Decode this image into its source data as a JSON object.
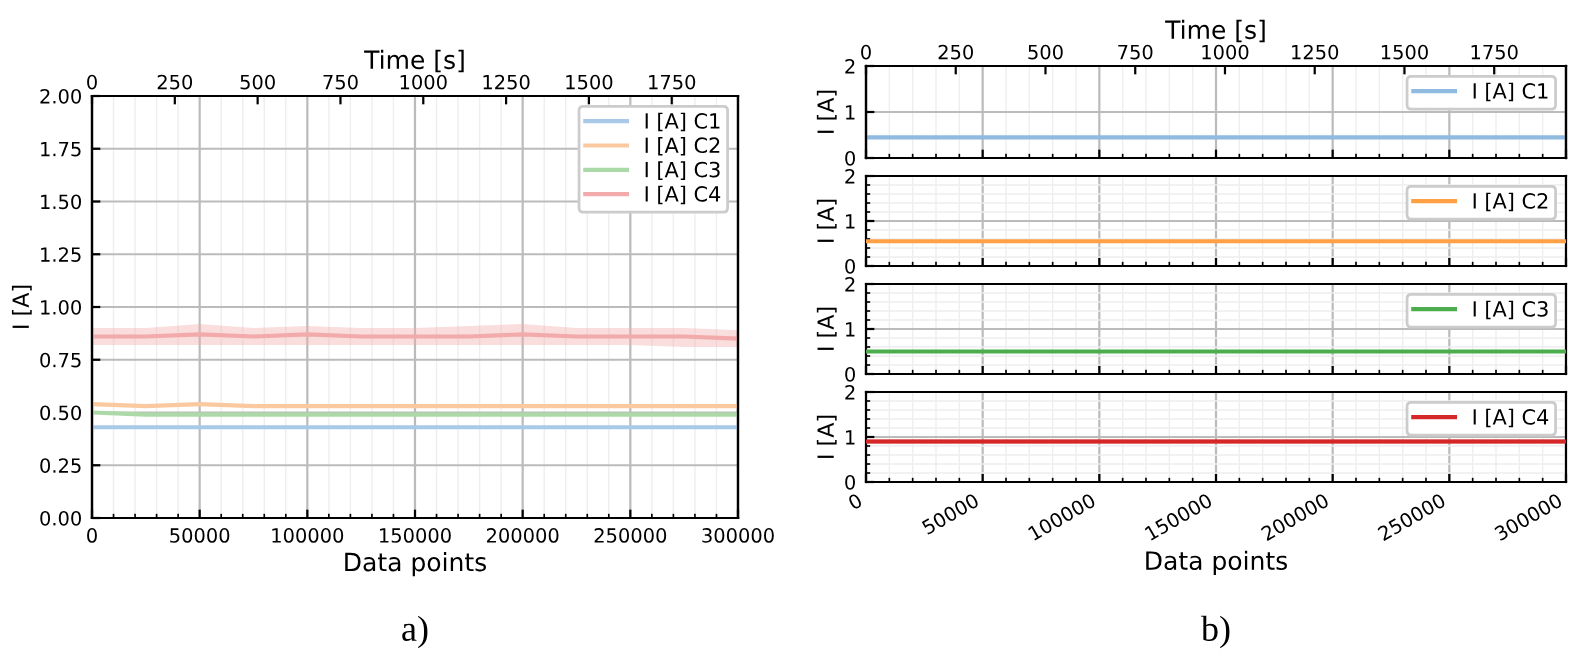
{
  "chart_data": [
    {
      "type": "line",
      "xlabel": "Data points",
      "ylabel": "I [A]",
      "x2label": "Time [s]",
      "xlim": [
        0,
        300000
      ],
      "xticks": [
        0,
        50000,
        100000,
        150000,
        200000,
        250000,
        300000
      ],
      "ylim": [
        0,
        2
      ],
      "yticks": [
        {
          "value": 0,
          "label": "0.00"
        },
        {
          "value": 0.25,
          "label": "0.25"
        },
        {
          "value": 0.5,
          "label": "0.50"
        },
        {
          "value": 0.75,
          "label": "0.75"
        },
        {
          "value": 1,
          "label": "1.00"
        },
        {
          "value": 1.25,
          "label": "1.25"
        },
        {
          "value": 1.5,
          "label": "1.50"
        },
        {
          "value": 1.75,
          "label": "1.75"
        },
        {
          "value": 2,
          "label": "2.00"
        }
      ],
      "x2lim": [
        0,
        1950
      ],
      "x2ticks": [
        0,
        250,
        500,
        750,
        1000,
        1250,
        1500,
        1750
      ],
      "grid": true,
      "legend": "top right",
      "annotations": [
        "a)"
      ],
      "x": [
        0,
        25000,
        50000,
        75000,
        100000,
        125000,
        150000,
        175000,
        200000,
        225000,
        250000,
        275000,
        300000
      ],
      "series": [
        {
          "name": "I [A] C1",
          "color": "#a9c9e8",
          "values": [
            0.43,
            0.43,
            0.43,
            0.43,
            0.43,
            0.43,
            0.43,
            0.43,
            0.43,
            0.43,
            0.43,
            0.43,
            0.43
          ]
        },
        {
          "name": "I [A] C2",
          "color": "#fbc9a0",
          "values": [
            0.54,
            0.53,
            0.54,
            0.53,
            0.53,
            0.53,
            0.53,
            0.53,
            0.53,
            0.53,
            0.53,
            0.53,
            0.53
          ]
        },
        {
          "name": "I [A] C3",
          "color": "#acd9a8",
          "values": [
            0.5,
            0.49,
            0.49,
            0.49,
            0.49,
            0.49,
            0.49,
            0.49,
            0.49,
            0.49,
            0.49,
            0.49,
            0.49
          ]
        },
        {
          "name": "I [A] C4",
          "color": "#f2aaaa",
          "values": [
            0.86,
            0.86,
            0.87,
            0.86,
            0.87,
            0.86,
            0.86,
            0.86,
            0.87,
            0.86,
            0.86,
            0.86,
            0.85
          ],
          "lower": [
            0.82,
            0.82,
            0.82,
            0.82,
            0.82,
            0.82,
            0.82,
            0.82,
            0.82,
            0.82,
            0.82,
            0.81,
            0.81
          ],
          "upper": [
            0.9,
            0.9,
            0.92,
            0.9,
            0.91,
            0.9,
            0.9,
            0.91,
            0.92,
            0.9,
            0.9,
            0.9,
            0.89
          ]
        }
      ]
    },
    {
      "type": "line",
      "ylabel": "I [A]",
      "x2label": "Time [s]",
      "xlim": [
        0,
        300000
      ],
      "xticks": [
        0,
        50000,
        100000,
        150000,
        200000,
        250000,
        300000
      ],
      "ylim": [
        0,
        2
      ],
      "yticks": [
        0,
        1,
        2
      ],
      "x2lim": [
        0,
        1950
      ],
      "x2ticks": [
        0,
        250,
        500,
        750,
        1000,
        1250,
        1500,
        1750
      ],
      "tick_labels": "y",
      "grid": true,
      "legend": "top right",
      "x": [
        0,
        50000,
        100000,
        150000,
        200000,
        250000,
        300000
      ],
      "series": [
        {
          "name": "I [A] C1",
          "color": "#8fbbe0",
          "values": [
            0.45,
            0.45,
            0.45,
            0.45,
            0.45,
            0.45,
            0.45
          ]
        }
      ]
    },
    {
      "type": "line",
      "ylabel": "I [A]",
      "xlim": [
        0,
        300000
      ],
      "xticks": [
        0,
        50000,
        100000,
        150000,
        200000,
        250000,
        300000
      ],
      "ylim": [
        0,
        2
      ],
      "yticks": [
        0,
        1,
        2
      ],
      "tick_labels": "y",
      "grid": true,
      "legend": "top right",
      "x": [
        0,
        50000,
        100000,
        150000,
        200000,
        250000,
        300000
      ],
      "series": [
        {
          "name": "I [A] C2",
          "color": "#ffa045",
          "values": [
            0.55,
            0.55,
            0.55,
            0.55,
            0.55,
            0.55,
            0.55
          ]
        }
      ]
    },
    {
      "type": "line",
      "ylabel": "I [A]",
      "xlim": [
        0,
        300000
      ],
      "xticks": [
        0,
        50000,
        100000,
        150000,
        200000,
        250000,
        300000
      ],
      "ylim": [
        0,
        2
      ],
      "yticks": [
        0,
        1,
        2
      ],
      "tick_labels": "y",
      "grid": true,
      "legend": "top right",
      "x": [
        0,
        50000,
        100000,
        150000,
        200000,
        250000,
        300000
      ],
      "series": [
        {
          "name": "I [A] C3",
          "color": "#4cad4c",
          "values": [
            0.5,
            0.5,
            0.5,
            0.5,
            0.5,
            0.5,
            0.5
          ]
        }
      ]
    },
    {
      "type": "line",
      "xlabel": "Data points",
      "ylabel": "I [A]",
      "xlim": [
        0,
        300000
      ],
      "xticks": [
        0,
        50000,
        100000,
        150000,
        200000,
        250000,
        300000
      ],
      "ylim": [
        0,
        2
      ],
      "yticks": [
        0,
        1,
        2
      ],
      "grid": true,
      "legend": "top right",
      "annotations": [
        "b)"
      ],
      "x": [
        0,
        50000,
        100000,
        150000,
        200000,
        250000,
        300000
      ],
      "series": [
        {
          "name": "I [A] C4",
          "color": "#d62728",
          "values": [
            0.9,
            0.9,
            0.9,
            0.9,
            0.9,
            0.9,
            0.9
          ],
          "lower": [
            0.85,
            0.85,
            0.85,
            0.85,
            0.85,
            0.85,
            0.85
          ],
          "upper": [
            0.95,
            0.95,
            0.95,
            0.95,
            0.95,
            0.95,
            0.95
          ]
        }
      ]
    }
  ]
}
